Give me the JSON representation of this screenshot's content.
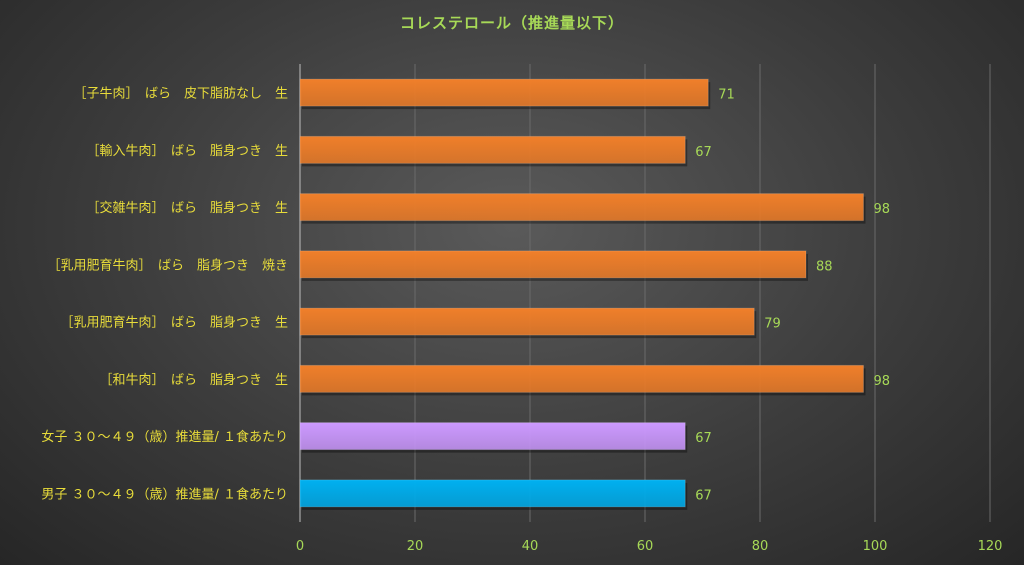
{
  "chart_data": {
    "type": "bar",
    "orientation": "horizontal",
    "title": "コレステロール（推進量以下）",
    "xlabel": "",
    "ylabel": "",
    "xlim": [
      0,
      120
    ],
    "ticks": [
      0,
      20,
      40,
      60,
      80,
      100,
      120
    ],
    "grid": true,
    "categories": [
      "［子牛肉］　ばら　皮下脂肪なし　生",
      "［輸入牛肉］　ばら　脂身つき　生",
      "［交雑牛肉］　ばら　脂身つき　生",
      "［乳用肥育牛肉］　ばら　脂身つき　焼き",
      "［乳用肥育牛肉］　ばら　脂身つき　生",
      "［和牛肉］　ばら　脂身つき　生",
      "女子 ３０～４９（歳）推進量/ １食あたり",
      "男子 ３０～４９（歳）推進量/ １食あたり"
    ],
    "values": [
      71,
      67,
      98,
      88,
      79,
      98,
      67,
      67
    ],
    "value_labels": [
      "71",
      "67",
      "98",
      "88",
      "79",
      "98",
      "67",
      "67"
    ],
    "bar_colors": [
      "#f07f2a",
      "#f07f2a",
      "#f07f2a",
      "#f07f2a",
      "#f07f2a",
      "#f07f2a",
      "#cc99ff",
      "#00b0f0"
    ]
  },
  "colors": {
    "title": "#a7d957",
    "category_text": "#e8dc3a",
    "tick_text": "#a7d957"
  }
}
